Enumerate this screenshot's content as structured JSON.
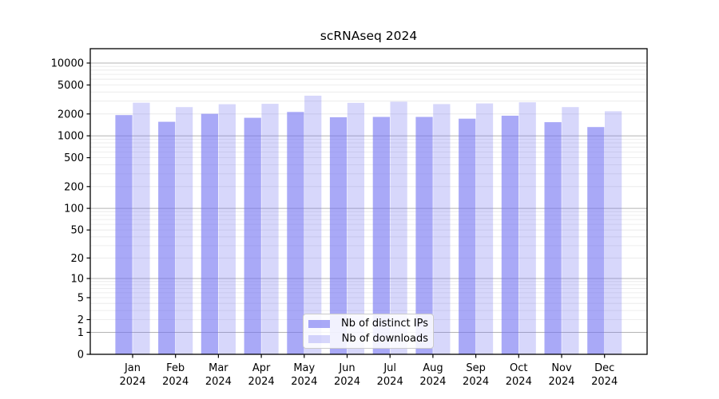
{
  "figure": {
    "title": "scRNAseq 2024"
  },
  "chart_data": {
    "type": "bar",
    "title": "scRNAseq 2024",
    "categories": [
      "Jan 2024",
      "Feb 2024",
      "Mar 2024",
      "Apr 2024",
      "May 2024",
      "Jun 2024",
      "Jul 2024",
      "Aug 2024",
      "Sep 2024",
      "Oct 2024",
      "Nov 2024",
      "Dec 2024"
    ],
    "series": [
      {
        "name": "Nb of distinct IPs",
        "fill": "rgba(112,112,242,0.6)",
        "values": [
          1930,
          1560,
          2010,
          1770,
          2130,
          1800,
          1820,
          1820,
          1720,
          1890,
          1540,
          1320
        ]
      },
      {
        "name": "Nb of downloads",
        "fill": "rgba(112,112,242,0.28)",
        "values": [
          2850,
          2480,
          2720,
          2750,
          3560,
          2840,
          2950,
          2730,
          2790,
          2890,
          2480,
          2180
        ]
      }
    ],
    "xlabel": "",
    "ylabel": "",
    "yscale": "symlog",
    "ylim": [
      0,
      15800
    ],
    "yticks": [
      0,
      1,
      2,
      5,
      10,
      20,
      50,
      100,
      200,
      500,
      1000,
      2000,
      5000,
      10000
    ],
    "grid": {
      "major": [
        1,
        10,
        100,
        1000,
        10000
      ],
      "minor_decades": [
        1,
        10,
        100,
        1000
      ],
      "minor_multiples": [
        2,
        3,
        4,
        5,
        6,
        7,
        8,
        9
      ]
    },
    "legend_position": "lower center inside",
    "colors": {
      "bar_base": "#7070f2",
      "grid_major": "#b4b4b4",
      "grid_minor": "#e8e8e8",
      "axis": "#000000",
      "text": "#000000",
      "legend_border": "#cbcbcb",
      "legend_bg": "rgba(255,255,255,0.85)"
    }
  }
}
